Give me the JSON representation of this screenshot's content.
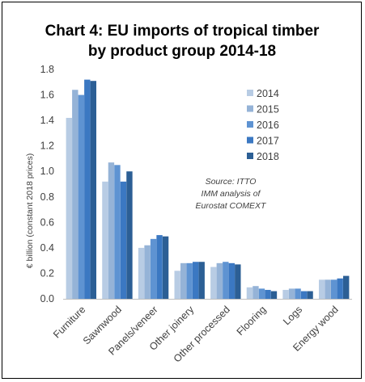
{
  "chart_data": {
    "type": "bar",
    "title_lines": [
      "Chart 4: EU imports of tropical timber",
      "by product group 2014-18"
    ],
    "ylabel": "€ billion (constant 2018 prices)",
    "xlabel": "",
    "ylim": [
      0,
      1.8
    ],
    "yticks": [
      0.0,
      0.2,
      0.4,
      0.6,
      0.8,
      1.0,
      1.2,
      1.4,
      1.6,
      1.8
    ],
    "ytick_labels": [
      "0.0",
      "0.2",
      "0.4",
      "0.6",
      "0.8",
      "1.0",
      "1.2",
      "1.4",
      "1.6",
      "1.8"
    ],
    "grid": false,
    "legend_position": "right",
    "categories": [
      "Furniture",
      "Sawnwood",
      "Panels/veneer",
      "Other joinery",
      "Other processed",
      "Flooring",
      "Logs",
      "Energy wood"
    ],
    "series": [
      {
        "name": "2014",
        "color": "#b8cce4",
        "values": [
          1.42,
          0.92,
          0.4,
          0.22,
          0.25,
          0.09,
          0.07,
          0.15
        ]
      },
      {
        "name": "2015",
        "color": "#95b3d7",
        "values": [
          1.64,
          1.07,
          0.42,
          0.28,
          0.28,
          0.1,
          0.08,
          0.15
        ]
      },
      {
        "name": "2016",
        "color": "#5e93d2",
        "values": [
          1.6,
          1.05,
          0.47,
          0.28,
          0.29,
          0.08,
          0.08,
          0.15
        ]
      },
      {
        "name": "2017",
        "color": "#3b78c2",
        "values": [
          1.72,
          0.92,
          0.5,
          0.29,
          0.28,
          0.07,
          0.06,
          0.16
        ]
      },
      {
        "name": "2018",
        "color": "#2c5f95",
        "values": [
          1.71,
          1.0,
          0.49,
          0.29,
          0.27,
          0.06,
          0.06,
          0.18
        ]
      }
    ],
    "annotation_lines": [
      "Source: ITTO",
      "IMM analysis of",
      "Eurostat COMEXT"
    ]
  }
}
